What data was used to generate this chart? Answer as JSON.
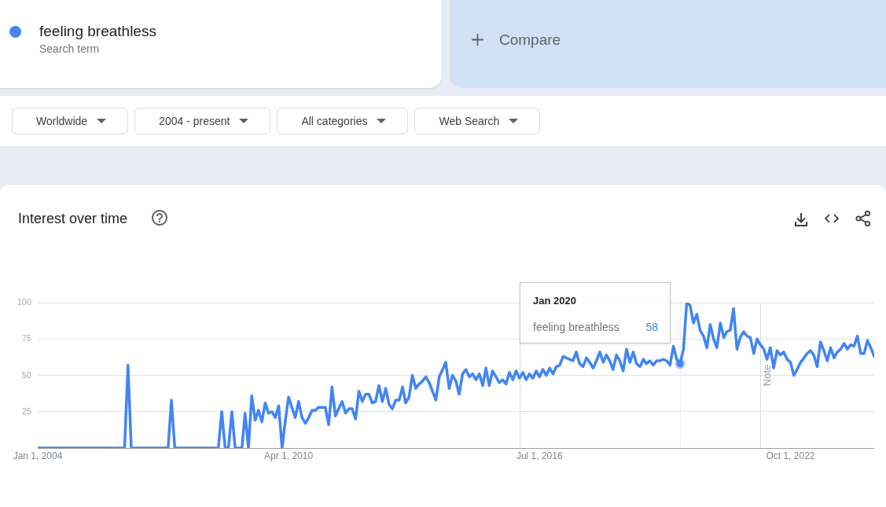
{
  "chart_data": {
    "type": "line",
    "title": "Interest over time",
    "x": [
      "2004-01",
      "2004-02",
      "2004-03",
      "2004-04",
      "2004-05",
      "2004-06",
      "2004-07",
      "2004-08",
      "2004-09",
      "2004-10",
      "2004-11",
      "2004-12",
      "2005-01",
      "2005-02",
      "2005-03",
      "2005-04",
      "2005-05",
      "2005-06",
      "2005-07",
      "2005-08",
      "2005-09",
      "2005-10",
      "2005-11",
      "2005-12",
      "2006-01",
      "2006-02",
      "2006-03",
      "2006-04",
      "2006-05",
      "2006-06",
      "2006-07",
      "2006-08",
      "2006-09",
      "2006-10",
      "2006-11",
      "2006-12",
      "2007-01",
      "2007-02",
      "2007-03",
      "2007-04",
      "2007-05",
      "2007-06",
      "2007-07",
      "2007-08",
      "2007-09",
      "2007-10",
      "2007-11",
      "2007-12",
      "2008-01",
      "2008-02",
      "2008-03",
      "2008-04",
      "2008-05",
      "2008-06",
      "2008-07",
      "2008-08",
      "2008-09",
      "2008-10",
      "2008-11",
      "2008-12",
      "2009-01",
      "2009-02",
      "2009-03",
      "2009-04",
      "2009-05",
      "2009-06",
      "2009-07",
      "2009-08",
      "2009-09",
      "2009-10",
      "2009-11",
      "2009-12",
      "2010-01",
      "2010-02",
      "2010-03",
      "2010-04",
      "2010-05",
      "2010-06",
      "2010-07",
      "2010-08",
      "2010-09",
      "2010-10",
      "2010-11",
      "2010-12",
      "2011-01",
      "2011-02",
      "2011-03",
      "2011-04",
      "2011-05",
      "2011-06",
      "2011-07",
      "2011-08",
      "2011-09",
      "2011-10",
      "2011-11",
      "2011-12",
      "2012-01",
      "2012-02",
      "2012-03",
      "2012-04",
      "2012-05",
      "2012-06",
      "2012-07",
      "2012-08",
      "2012-09",
      "2012-10",
      "2012-11",
      "2012-12",
      "2013-01",
      "2013-02",
      "2013-03",
      "2013-04",
      "2013-05",
      "2013-06",
      "2013-07",
      "2013-08",
      "2013-09",
      "2013-10",
      "2013-11",
      "2013-12",
      "2014-01",
      "2014-02",
      "2014-03",
      "2014-04",
      "2014-05",
      "2014-06",
      "2014-07",
      "2014-08",
      "2014-09",
      "2014-10",
      "2014-11",
      "2014-12",
      "2015-01",
      "2015-02",
      "2015-03",
      "2015-04",
      "2015-05",
      "2015-06",
      "2015-07",
      "2015-08",
      "2015-09",
      "2015-10",
      "2015-11",
      "2015-12",
      "2016-01",
      "2016-02",
      "2016-03",
      "2016-04",
      "2016-05",
      "2016-06",
      "2016-07",
      "2016-08",
      "2016-09",
      "2016-10",
      "2016-11",
      "2016-12",
      "2017-01",
      "2017-02",
      "2017-03",
      "2017-04",
      "2017-05",
      "2017-06",
      "2017-07",
      "2017-08",
      "2017-09",
      "2017-10",
      "2017-11",
      "2017-12",
      "2018-01",
      "2018-02",
      "2018-03",
      "2018-04",
      "2018-05",
      "2018-06",
      "2018-07",
      "2018-08",
      "2018-09",
      "2018-10",
      "2018-11",
      "2018-12",
      "2019-01",
      "2019-02",
      "2019-03",
      "2019-04",
      "2019-05",
      "2019-06",
      "2019-07",
      "2019-08",
      "2019-09",
      "2019-10",
      "2019-11",
      "2019-12",
      "2020-01",
      "2020-02",
      "2020-03",
      "2020-04",
      "2020-05",
      "2020-06",
      "2020-07",
      "2020-08",
      "2020-09",
      "2020-10",
      "2020-11",
      "2020-12",
      "2021-01",
      "2021-02",
      "2021-03",
      "2021-04",
      "2021-05",
      "2021-06",
      "2021-07",
      "2021-08",
      "2021-09",
      "2021-10",
      "2021-11",
      "2021-12",
      "2022-01",
      "2022-02",
      "2022-03",
      "2022-04",
      "2022-05",
      "2022-06",
      "2022-07",
      "2022-08",
      "2022-09",
      "2022-10",
      "2022-11",
      "2022-12",
      "2023-01",
      "2023-02",
      "2023-03",
      "2023-04",
      "2023-05",
      "2023-06",
      "2023-07",
      "2023-08",
      "2023-09",
      "2023-10",
      "2023-11",
      "2023-12",
      "2024-01",
      "2024-02",
      "2024-03",
      "2024-04",
      "2024-05",
      "2024-06",
      "2024-07",
      "2024-08",
      "2024-09",
      "2024-10",
      "2024-11"
    ],
    "series": [
      {
        "name": "feeling breathless",
        "color": "#4285f4",
        "values": [
          0,
          0,
          0,
          0,
          0,
          0,
          0,
          0,
          0,
          0,
          0,
          0,
          0,
          0,
          0,
          0,
          0,
          0,
          0,
          0,
          0,
          0,
          0,
          0,
          0,
          0,
          0,
          57,
          0,
          0,
          0,
          0,
          0,
          0,
          0,
          0,
          0,
          0,
          0,
          0,
          33,
          0,
          0,
          0,
          0,
          0,
          0,
          0,
          0,
          0,
          0,
          0,
          0,
          0,
          0,
          25,
          0,
          0,
          25,
          0,
          0,
          0,
          24,
          0,
          36,
          19,
          26,
          18,
          31,
          24,
          25,
          21,
          29,
          0,
          18,
          35,
          28,
          21,
          32,
          21,
          17,
          21,
          26,
          26,
          28,
          28,
          28,
          16,
          42,
          22,
          27,
          32,
          24,
          27,
          27,
          20,
          39,
          32,
          37,
          37,
          31,
          32,
          43,
          32,
          41,
          30,
          27,
          33,
          33,
          42,
          31,
          35,
          50,
          41,
          44,
          46,
          49,
          45,
          39,
          33,
          49,
          54,
          59,
          41,
          50,
          46,
          37,
          51,
          54,
          49,
          51,
          47,
          51,
          43,
          55,
          43,
          53,
          49,
          45,
          47,
          44,
          52,
          47,
          53,
          48,
          52,
          47,
          51,
          48,
          53,
          49,
          54,
          50,
          55,
          51,
          56,
          57,
          63,
          62,
          61,
          60,
          66,
          58,
          56,
          62,
          59,
          55,
          60,
          66,
          59,
          64,
          60,
          54,
          64,
          60,
          53,
          68,
          59,
          66,
          58,
          56,
          61,
          58,
          60,
          57,
          60,
          60,
          61,
          60,
          57,
          70,
          61,
          58,
          68,
          100,
          98,
          86,
          92,
          81,
          77,
          69,
          85,
          75,
          69,
          86,
          76,
          80,
          81,
          96,
          68,
          76,
          80,
          77,
          76,
          65,
          75,
          71,
          68,
          61,
          69,
          55,
          67,
          64,
          66,
          61,
          59,
          50,
          54,
          59,
          62,
          65,
          67,
          64,
          56,
          73,
          67,
          60,
          69,
          62,
          66,
          68,
          72,
          68,
          71,
          70,
          77,
          65,
          65,
          74,
          69,
          63
        ],
        "value_labels": [
          null,
          null,
          null,
          null,
          null,
          null,
          null,
          null,
          null,
          null,
          null,
          null,
          null,
          null,
          null,
          null,
          null,
          null,
          null,
          null,
          null,
          null,
          null,
          null,
          null,
          null,
          null,
          null,
          null,
          null,
          null,
          null,
          null,
          null,
          null,
          null,
          null,
          null,
          null,
          null,
          null,
          null,
          null,
          null,
          null,
          null,
          null,
          null,
          null,
          null,
          null,
          null,
          null,
          null,
          null,
          null,
          null,
          null,
          null,
          null,
          null,
          null,
          null,
          null,
          null,
          null,
          null,
          null,
          null,
          null,
          null,
          null,
          null,
          null,
          null,
          null,
          null,
          null,
          null,
          null,
          null,
          null,
          null,
          null,
          null,
          null,
          null,
          null,
          null,
          null,
          null,
          null,
          null,
          null,
          null,
          null,
          null,
          null,
          null,
          null,
          null,
          null,
          null,
          null,
          null,
          null,
          null,
          null,
          null,
          null,
          null,
          null,
          null,
          null,
          null,
          null,
          null,
          null,
          null,
          null,
          null,
          null,
          null,
          null,
          null,
          null,
          null,
          null,
          null,
          null,
          null,
          null,
          null,
          null,
          null,
          null,
          null,
          null,
          null,
          null,
          null,
          null,
          null,
          null,
          null,
          null,
          null,
          null,
          null,
          null,
          null,
          null,
          null,
          null,
          null,
          null,
          null,
          null,
          null,
          null,
          null,
          null,
          null,
          null,
          null,
          null,
          null,
          null,
          null,
          null,
          null,
          null,
          null,
          null,
          null,
          null,
          null,
          null,
          null,
          null,
          null,
          null,
          null,
          null,
          null,
          null,
          null,
          null,
          null,
          null,
          null,
          null,
          "58",
          null,
          null,
          null,
          null,
          null,
          null,
          null,
          null,
          null,
          null,
          null,
          null,
          null,
          null,
          null,
          null,
          null,
          null,
          null,
          null,
          null,
          null,
          null,
          null,
          null,
          null,
          null,
          null,
          null,
          null,
          null,
          null,
          null,
          null,
          null,
          null,
          null,
          null,
          null,
          null,
          null,
          null,
          null,
          null,
          null,
          null,
          null,
          null,
          null,
          null,
          null,
          null,
          null,
          null,
          null,
          null,
          null,
          null
        ]
      }
    ],
    "xlim": [
      "2004-01",
      "2024-11"
    ],
    "xticks": [
      {
        "value": "2004-01-01",
        "label": "Jan 1, 2004"
      },
      {
        "value": "2010-04-01",
        "label": "Apr 1, 2010"
      },
      {
        "value": "2016-07-01",
        "label": "Jul 1, 2016"
      },
      {
        "value": "2022-10-01",
        "label": "Oct 1, 2022"
      }
    ],
    "ylim": [
      0,
      100
    ],
    "yticks": [
      {
        "value": 0,
        "label": null
      },
      25,
      50,
      75,
      100
    ],
    "grid": "y",
    "legend": "top left",
    "marker": "none",
    "ref_lines": [
      {
        "axis": "x",
        "value": "2016-01",
        "color": "#dadce0"
      },
      {
        "axis": "x",
        "value": "2020-01",
        "color": "#eceef1"
      },
      {
        "axis": "x",
        "value": "2022-01",
        "label": "Note",
        "color": "#dadce0"
      }
    ],
    "annotations": [
      "Search term",
      "Compare",
      "Worldwide",
      "2004 - present",
      "All categories",
      "Web Search",
      "Jan 2020"
    ]
  }
}
